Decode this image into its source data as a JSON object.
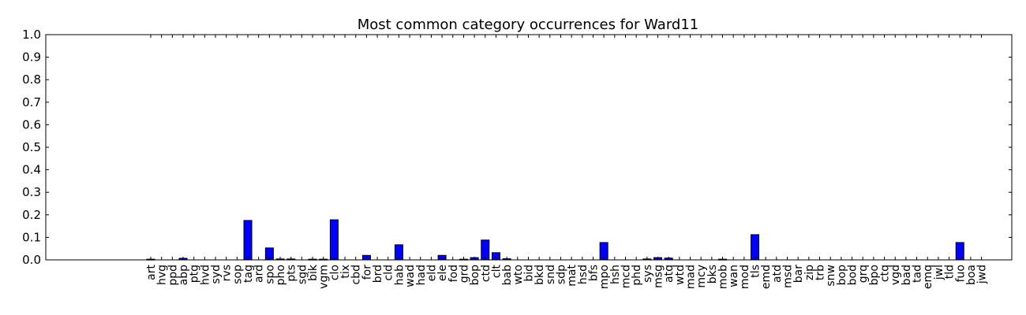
{
  "chart_data": {
    "type": "bar",
    "title": "Most common category occurrences for Ward11",
    "xlabel": "",
    "ylabel": "",
    "ylim": [
      0,
      1.0
    ],
    "yticks": [
      "0.0",
      "0.1",
      "0.2",
      "0.3",
      "0.4",
      "0.5",
      "0.6",
      "0.7",
      "0.8",
      "0.9",
      "1.0"
    ],
    "categories": [
      "art",
      "hvg",
      "ppd",
      "abp",
      "ptg",
      "hvd",
      "syd",
      "rvs",
      "sop",
      "tag",
      "ard",
      "spo",
      "pho",
      "pts",
      "sgd",
      "bik",
      "vgm",
      "clo",
      "tix",
      "cbd",
      "for",
      "brd",
      "cld",
      "hab",
      "wad",
      "had",
      "eld",
      "ele",
      "fod",
      "grd",
      "bop",
      "ctd",
      "clt",
      "bab",
      "wto",
      "bid",
      "bkd",
      "snd",
      "sdp",
      "mat",
      "hsd",
      "bfs",
      "mpo",
      "hsh",
      "mcd",
      "phd",
      "sys",
      "msg",
      "atq",
      "wtd",
      "mad",
      "mcy",
      "bks",
      "mob",
      "wan",
      "mod",
      "tls",
      "emd",
      "atd",
      "msd",
      "bar",
      "zip",
      "trb",
      "snw",
      "bop",
      "bod",
      "grq",
      "bpo",
      "ctq",
      "vgd",
      "bad",
      "tad",
      "emq",
      "jwl",
      "tld",
      "fuo",
      "boa",
      "jwd"
    ],
    "values": [
      0.003,
      0,
      0,
      0.007,
      0,
      0,
      0,
      0,
      0,
      0.175,
      0,
      0.053,
      0.004,
      0.004,
      0,
      0.003,
      0.003,
      0.178,
      0,
      0,
      0.02,
      0,
      0,
      0.067,
      0,
      0,
      0,
      0.02,
      0,
      0.003,
      0.01,
      0.088,
      0.032,
      0.005,
      0,
      0,
      0,
      0,
      0,
      0,
      0,
      0,
      0.077,
      0,
      0,
      0,
      0.004,
      0.01,
      0.008,
      0,
      0,
      0,
      0,
      0.003,
      0,
      0,
      0.112,
      0,
      0,
      0,
      0,
      0,
      0,
      0,
      0,
      0,
      0,
      0,
      0,
      0,
      0,
      0,
      0,
      0,
      0,
      0.077,
      0,
      0
    ]
  }
}
